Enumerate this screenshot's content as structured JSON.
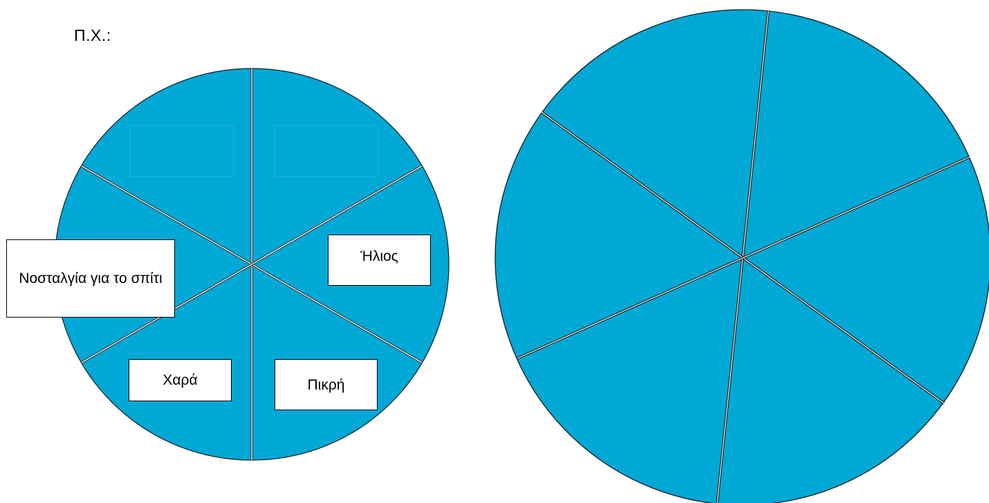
{
  "example_label": "Π.Χ.:",
  "wheel_color": "#00a8d6",
  "left_wheel": {
    "labels": {
      "nostalgia": "Νοσταλγία για το σπίτι",
      "ilios": "Ήλιος",
      "chara": "Χαρά",
      "pikri": "Πικρή"
    }
  }
}
